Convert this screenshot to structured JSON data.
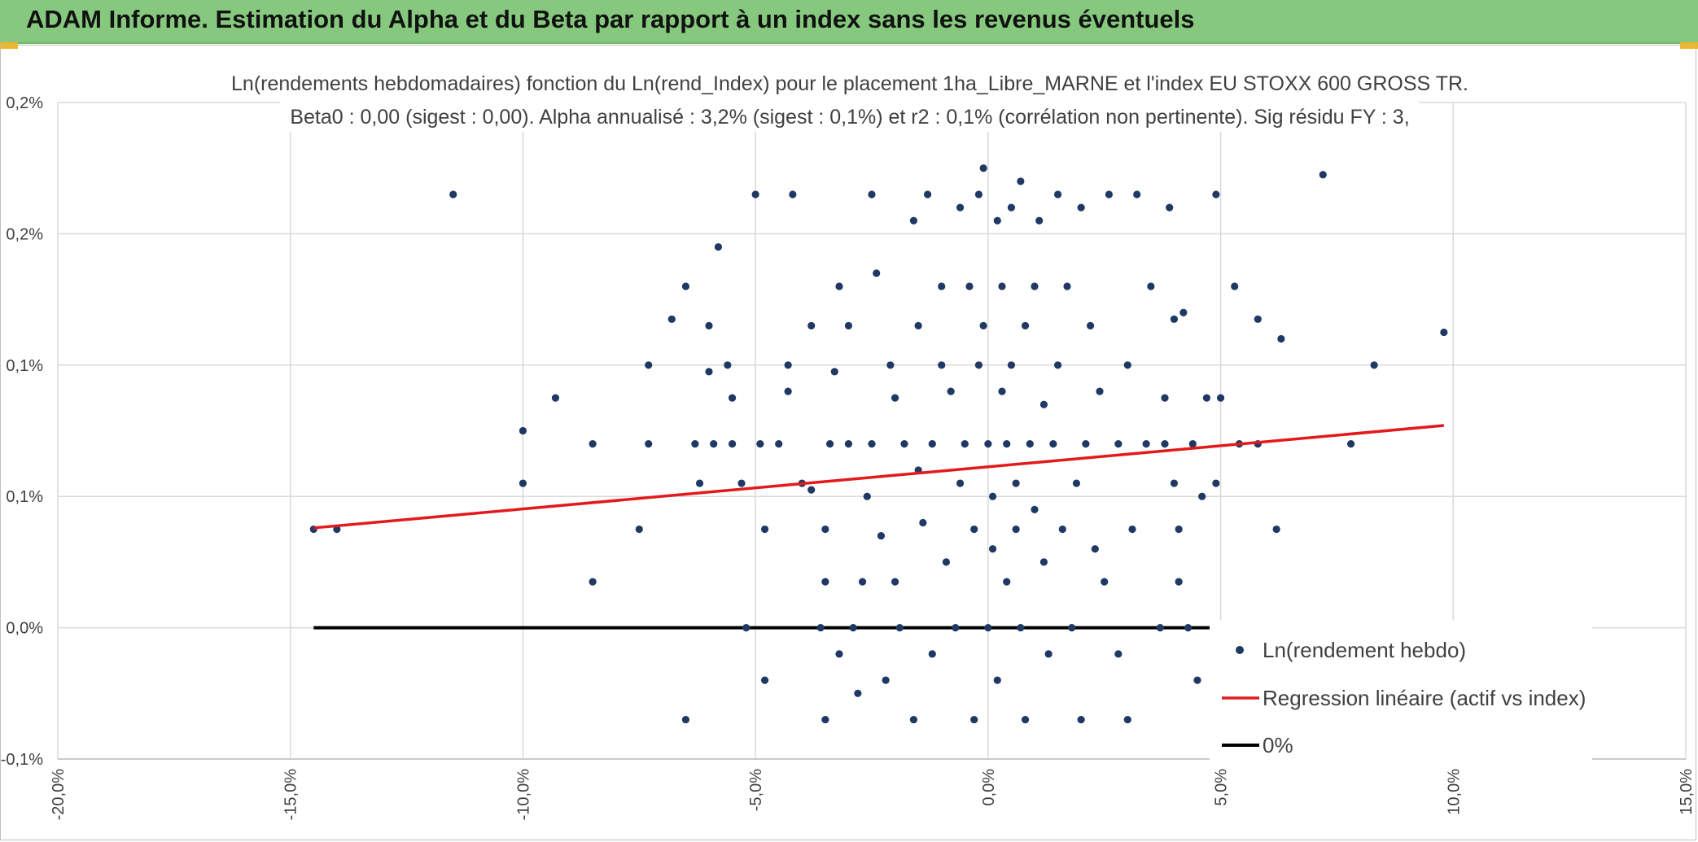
{
  "header": {
    "title": "ADAM Informe. Estimation du Alpha et du Beta par rapport à un index sans les revenus éventuels"
  },
  "colors": {
    "header_bg": "#86c97e",
    "points": "#203864",
    "regression": "#e31a1c",
    "zero_line": "#000000",
    "grid": "#d9d9d9"
  },
  "chart_data": {
    "type": "scatter",
    "title": "Ln(rendements hebdomadaires) fonction du Ln(rend_Index) pour le placement 1ha_Libre_MARNE et l'index EU STOXX 600 GROSS TR.",
    "subtitle": "Beta0 : 0,00 (sigest : 0,00). Alpha annualisé : 3,2% (sigest : 0,1%) et r2 : 0,1% (corrélation non pertinente). Sig résidu FY : 3,",
    "xlim": [
      -20,
      15
    ],
    "ylim": [
      -0.1,
      0.4
    ],
    "x_ticks": [
      "-20,0%",
      "-15,0%",
      "-10,0%",
      "-5,0%",
      "0,0%",
      "5,0%",
      "10,0%",
      "15,0%"
    ],
    "y_ticks": [
      "-0,1%",
      "0,0%",
      "0,1%",
      "0,1%",
      "0,2%",
      "0,2%"
    ],
    "grid": true,
    "legend_position": "bottom-right",
    "legend": [
      "Ln(rendement hebdo)",
      "Regression linéaire (actif vs index)",
      "0%"
    ],
    "series": [
      {
        "name": "Ln(rendement hebdo)",
        "points": [
          [
            -14.5,
            0.075
          ],
          [
            -14.0,
            0.075
          ],
          [
            -11.5,
            0.33
          ],
          [
            -10.0,
            0.15
          ],
          [
            -10.0,
            0.11
          ],
          [
            -9.3,
            0.175
          ],
          [
            -8.5,
            0.035
          ],
          [
            -8.5,
            0.14
          ],
          [
            -7.5,
            0.075
          ],
          [
            -7.3,
            0.14
          ],
          [
            -7.3,
            0.2
          ],
          [
            -6.8,
            0.235
          ],
          [
            -6.5,
            0.26
          ],
          [
            -6.5,
            -0.07
          ],
          [
            -6.3,
            0.14
          ],
          [
            -6.2,
            0.11
          ],
          [
            -6.0,
            0.23
          ],
          [
            -6.0,
            0.195
          ],
          [
            -5.9,
            0.14
          ],
          [
            -5.8,
            0.29
          ],
          [
            -5.6,
            0.2
          ],
          [
            -5.5,
            0.175
          ],
          [
            -5.5,
            0.14
          ],
          [
            -5.3,
            0.11
          ],
          [
            -5.2,
            0.0
          ],
          [
            -5.0,
            0.33
          ],
          [
            -4.9,
            0.14
          ],
          [
            -4.8,
            0.075
          ],
          [
            -4.8,
            -0.04
          ],
          [
            -4.5,
            0.14
          ],
          [
            -4.3,
            0.2
          ],
          [
            -4.3,
            0.18
          ],
          [
            -4.2,
            0.33
          ],
          [
            -4.0,
            0.11
          ],
          [
            -3.8,
            0.23
          ],
          [
            -3.8,
            0.105
          ],
          [
            -3.6,
            0.0
          ],
          [
            -3.5,
            -0.07
          ],
          [
            -3.5,
            0.035
          ],
          [
            -3.5,
            0.075
          ],
          [
            -3.4,
            0.14
          ],
          [
            -3.3,
            0.195
          ],
          [
            -3.2,
            0.26
          ],
          [
            -3.2,
            -0.02
          ],
          [
            -3.0,
            0.14
          ],
          [
            -3.0,
            0.23
          ],
          [
            -2.9,
            0.0
          ],
          [
            -2.8,
            -0.05
          ],
          [
            -2.7,
            0.035
          ],
          [
            -2.6,
            0.1
          ],
          [
            -2.5,
            0.14
          ],
          [
            -2.5,
            0.33
          ],
          [
            -2.4,
            0.27
          ],
          [
            -2.3,
            0.07
          ],
          [
            -2.2,
            -0.04
          ],
          [
            -2.1,
            0.2
          ],
          [
            -2.0,
            0.175
          ],
          [
            -2.0,
            0.035
          ],
          [
            -1.9,
            0.0
          ],
          [
            -1.8,
            0.14
          ],
          [
            -1.6,
            -0.07
          ],
          [
            -1.6,
            0.31
          ],
          [
            -1.5,
            0.12
          ],
          [
            -1.5,
            0.23
          ],
          [
            -1.4,
            0.08
          ],
          [
            -1.3,
            0.33
          ],
          [
            -1.2,
            0.14
          ],
          [
            -1.2,
            -0.02
          ],
          [
            -1.0,
            0.2
          ],
          [
            -1.0,
            0.26
          ],
          [
            -0.9,
            0.05
          ],
          [
            -0.8,
            0.18
          ],
          [
            -0.7,
            0.0
          ],
          [
            -0.6,
            0.11
          ],
          [
            -0.6,
            0.32
          ],
          [
            -0.5,
            0.14
          ],
          [
            -0.4,
            0.26
          ],
          [
            -0.3,
            -0.07
          ],
          [
            -0.3,
            0.075
          ],
          [
            -0.2,
            0.2
          ],
          [
            -0.2,
            0.33
          ],
          [
            -0.1,
            0.23
          ],
          [
            -0.1,
            0.35
          ],
          [
            0.0,
            0.14
          ],
          [
            0.0,
            0.0
          ],
          [
            0.1,
            0.1
          ],
          [
            0.1,
            0.06
          ],
          [
            0.2,
            0.31
          ],
          [
            0.2,
            -0.04
          ],
          [
            0.3,
            0.18
          ],
          [
            0.3,
            0.26
          ],
          [
            0.4,
            0.14
          ],
          [
            0.4,
            0.035
          ],
          [
            0.5,
            0.32
          ],
          [
            0.5,
            0.2
          ],
          [
            0.6,
            0.075
          ],
          [
            0.6,
            0.11
          ],
          [
            0.7,
            0.34
          ],
          [
            0.7,
            0.0
          ],
          [
            0.8,
            0.23
          ],
          [
            0.8,
            -0.07
          ],
          [
            0.9,
            0.14
          ],
          [
            1.0,
            0.26
          ],
          [
            1.0,
            0.09
          ],
          [
            1.1,
            0.31
          ],
          [
            1.2,
            0.17
          ],
          [
            1.2,
            0.05
          ],
          [
            1.3,
            -0.02
          ],
          [
            1.4,
            0.14
          ],
          [
            1.5,
            0.33
          ],
          [
            1.5,
            0.2
          ],
          [
            1.6,
            0.075
          ],
          [
            1.7,
            0.26
          ],
          [
            1.8,
            0.0
          ],
          [
            1.9,
            0.11
          ],
          [
            2.0,
            0.32
          ],
          [
            2.0,
            -0.07
          ],
          [
            2.1,
            0.14
          ],
          [
            2.2,
            0.23
          ],
          [
            2.3,
            0.06
          ],
          [
            2.4,
            0.18
          ],
          [
            2.5,
            0.035
          ],
          [
            2.6,
            0.33
          ],
          [
            2.8,
            0.14
          ],
          [
            2.8,
            -0.02
          ],
          [
            3.0,
            0.2
          ],
          [
            3.0,
            -0.07
          ],
          [
            3.1,
            0.075
          ],
          [
            3.2,
            0.33
          ],
          [
            3.4,
            0.14
          ],
          [
            3.5,
            0.26
          ],
          [
            3.7,
            0.0
          ],
          [
            3.8,
            0.14
          ],
          [
            3.8,
            0.175
          ],
          [
            3.9,
            0.32
          ],
          [
            4.0,
            0.235
          ],
          [
            4.0,
            0.11
          ],
          [
            4.1,
            0.075
          ],
          [
            4.1,
            0.035
          ],
          [
            4.2,
            0.24
          ],
          [
            4.3,
            0.0
          ],
          [
            4.4,
            0.14
          ],
          [
            4.5,
            -0.04
          ],
          [
            4.6,
            0.1
          ],
          [
            4.7,
            0.175
          ],
          [
            4.9,
            0.33
          ],
          [
            4.9,
            0.11
          ],
          [
            5.0,
            0.175
          ],
          [
            5.3,
            0.26
          ],
          [
            5.4,
            0.14
          ],
          [
            5.8,
            0.14
          ],
          [
            5.8,
            0.235
          ],
          [
            6.2,
            0.075
          ],
          [
            6.3,
            0.22
          ],
          [
            7.2,
            0.345
          ],
          [
            7.8,
            0.14
          ],
          [
            8.3,
            0.2
          ],
          [
            9.8,
            0.225
          ]
        ]
      },
      {
        "name": "Regression linéaire (actif vs index)",
        "line": [
          [
            -14.5,
            0.076
          ],
          [
            9.8,
            0.154
          ]
        ]
      },
      {
        "name": "0%",
        "line": [
          [
            -14.5,
            0.0
          ],
          [
            9.8,
            0.0
          ]
        ]
      }
    ]
  }
}
